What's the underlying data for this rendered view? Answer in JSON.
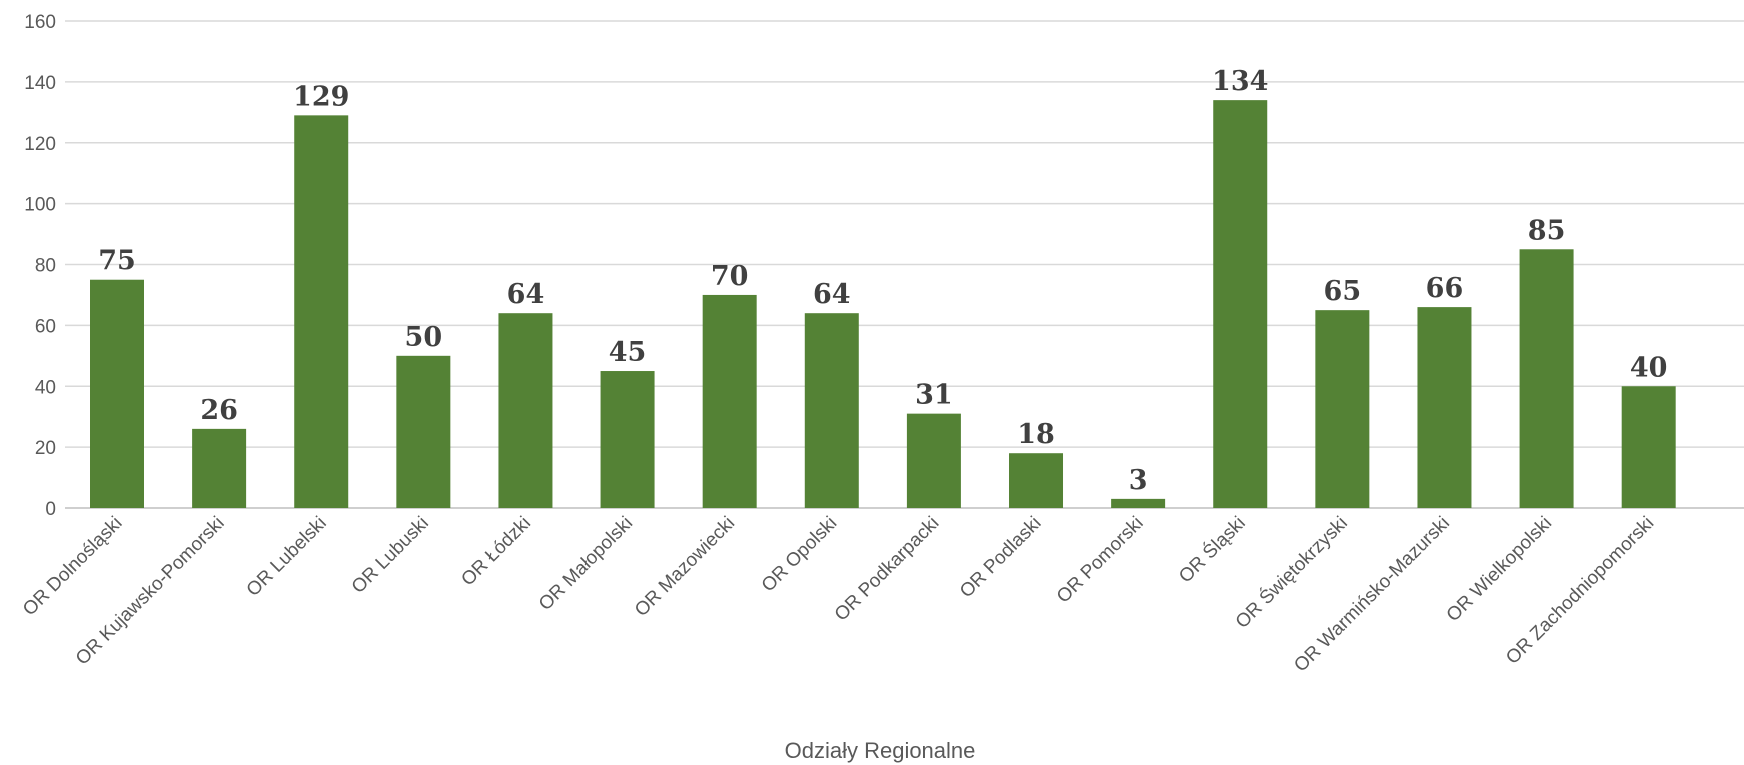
{
  "chart_data": {
    "type": "bar",
    "xlabel": "Odziały Regionalne",
    "ylabel": "",
    "ylim": [
      0,
      160
    ],
    "yticks": [
      0,
      20,
      40,
      60,
      80,
      100,
      120,
      140,
      160
    ],
    "grid": true,
    "legend": "none",
    "color": "#548235",
    "categories": [
      "OR Dolnośląski",
      "OR Kujawsko-Pomorski",
      "OR Lubelski",
      "OR Lubuski",
      "OR Łódzki",
      "OR Małopolski",
      "OR Mazowiecki",
      "OR Opolski",
      "OR Podkarpacki",
      "OR Podlaski",
      "OR Pomorski",
      "OR Śląski",
      "OR Świętokrzyski",
      "OR Warmińsko-Mazurski",
      "OR Wielkopolski",
      "OR Zachodniopomorski"
    ],
    "values": [
      75,
      26,
      129,
      50,
      64,
      45,
      70,
      64,
      31,
      18,
      3,
      134,
      65,
      66,
      85,
      40
    ]
  }
}
